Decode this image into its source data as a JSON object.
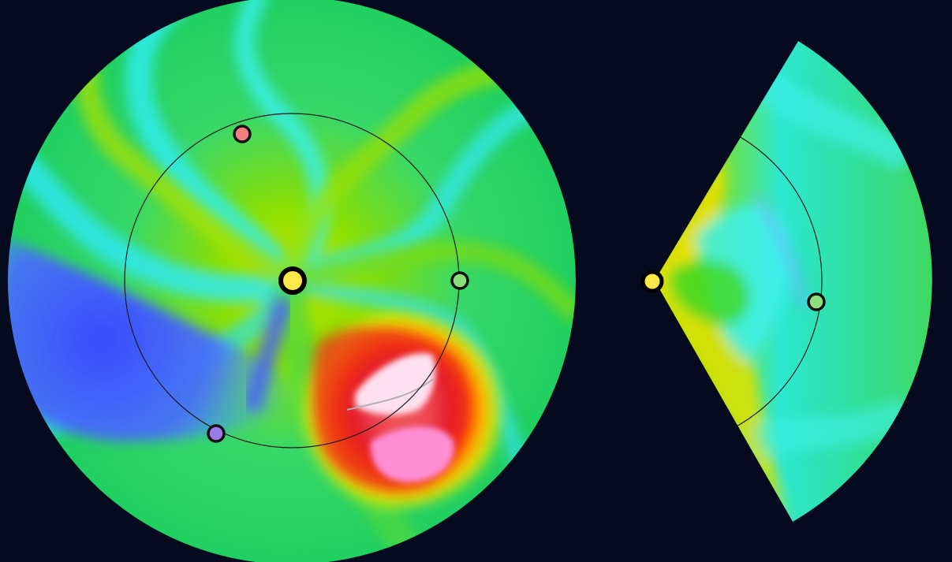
{
  "colors": {
    "background": "#050a1e",
    "sun": "#ffe84a",
    "orbit": "#1a1a1a",
    "earth": "#8be07a",
    "stereo_a": "#f08080",
    "stereo_b": "#9b7be8",
    "palette_low": "#4b4bff",
    "palette_mid": "#2be8d8",
    "palette_high": "#ff2200",
    "palette_peak": "#ffd8f0"
  },
  "objects": {
    "sun": "sun-marker",
    "earth": "earth-marker",
    "stereo_a": "spacecraft-a-marker",
    "stereo_b": "spacecraft-b-marker"
  }
}
